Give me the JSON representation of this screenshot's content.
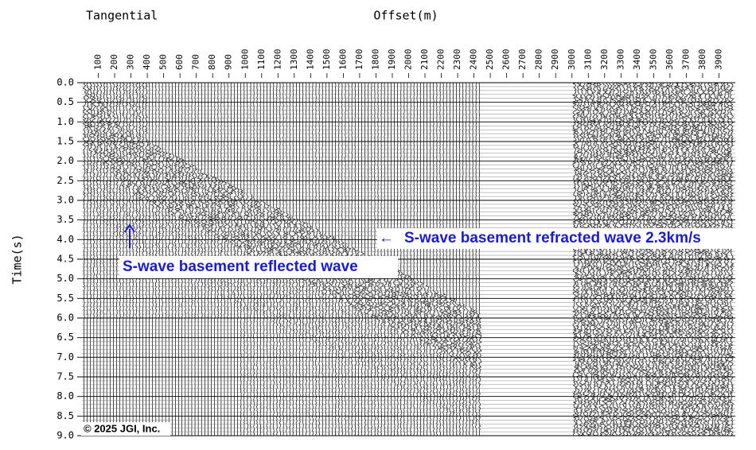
{
  "chart_data": {
    "type": "seismic",
    "title": "Tangential",
    "x_label": "Offset(m)",
    "y_label": "Time(s)",
    "xlim": [
      0,
      4000
    ],
    "ylim": [
      0,
      9
    ],
    "y_inverted": true,
    "grid": true,
    "xticks": [
      100,
      200,
      300,
      400,
      500,
      600,
      700,
      800,
      900,
      1000,
      1100,
      1200,
      1300,
      1400,
      1500,
      1600,
      1700,
      1800,
      1900,
      2000,
      2100,
      2200,
      2300,
      2400,
      2500,
      2600,
      2700,
      2800,
      2900,
      3000,
      3100,
      3200,
      3300,
      3400,
      3500,
      3600,
      3700,
      3800,
      3900
    ],
    "yticks": [
      {
        "value": 0,
        "label": "0.0"
      },
      0.5,
      {
        "value": 1,
        "label": "1.0"
      },
      1.5,
      {
        "value": 2,
        "label": "2.0"
      },
      2.5,
      {
        "value": 3,
        "label": "3.0"
      },
      3.5,
      {
        "value": 4,
        "label": "4.0"
      },
      4.5,
      {
        "value": 5,
        "label": "5.0"
      },
      5.5,
      {
        "value": 6,
        "label": "6.0"
      },
      6.5,
      {
        "value": 7,
        "label": "7.0"
      },
      7.5,
      {
        "value": 8,
        "label": "8.0"
      },
      8.5,
      {
        "value": 9,
        "label": "9.0"
      }
    ],
    "annotations": [
      "S-wave basement refracted wave 2.3km/s",
      "S-wave basement reflected wave"
    ],
    "annotation_color": "#1a1adb",
    "copyright": "© 2025 JGI, Inc."
  }
}
